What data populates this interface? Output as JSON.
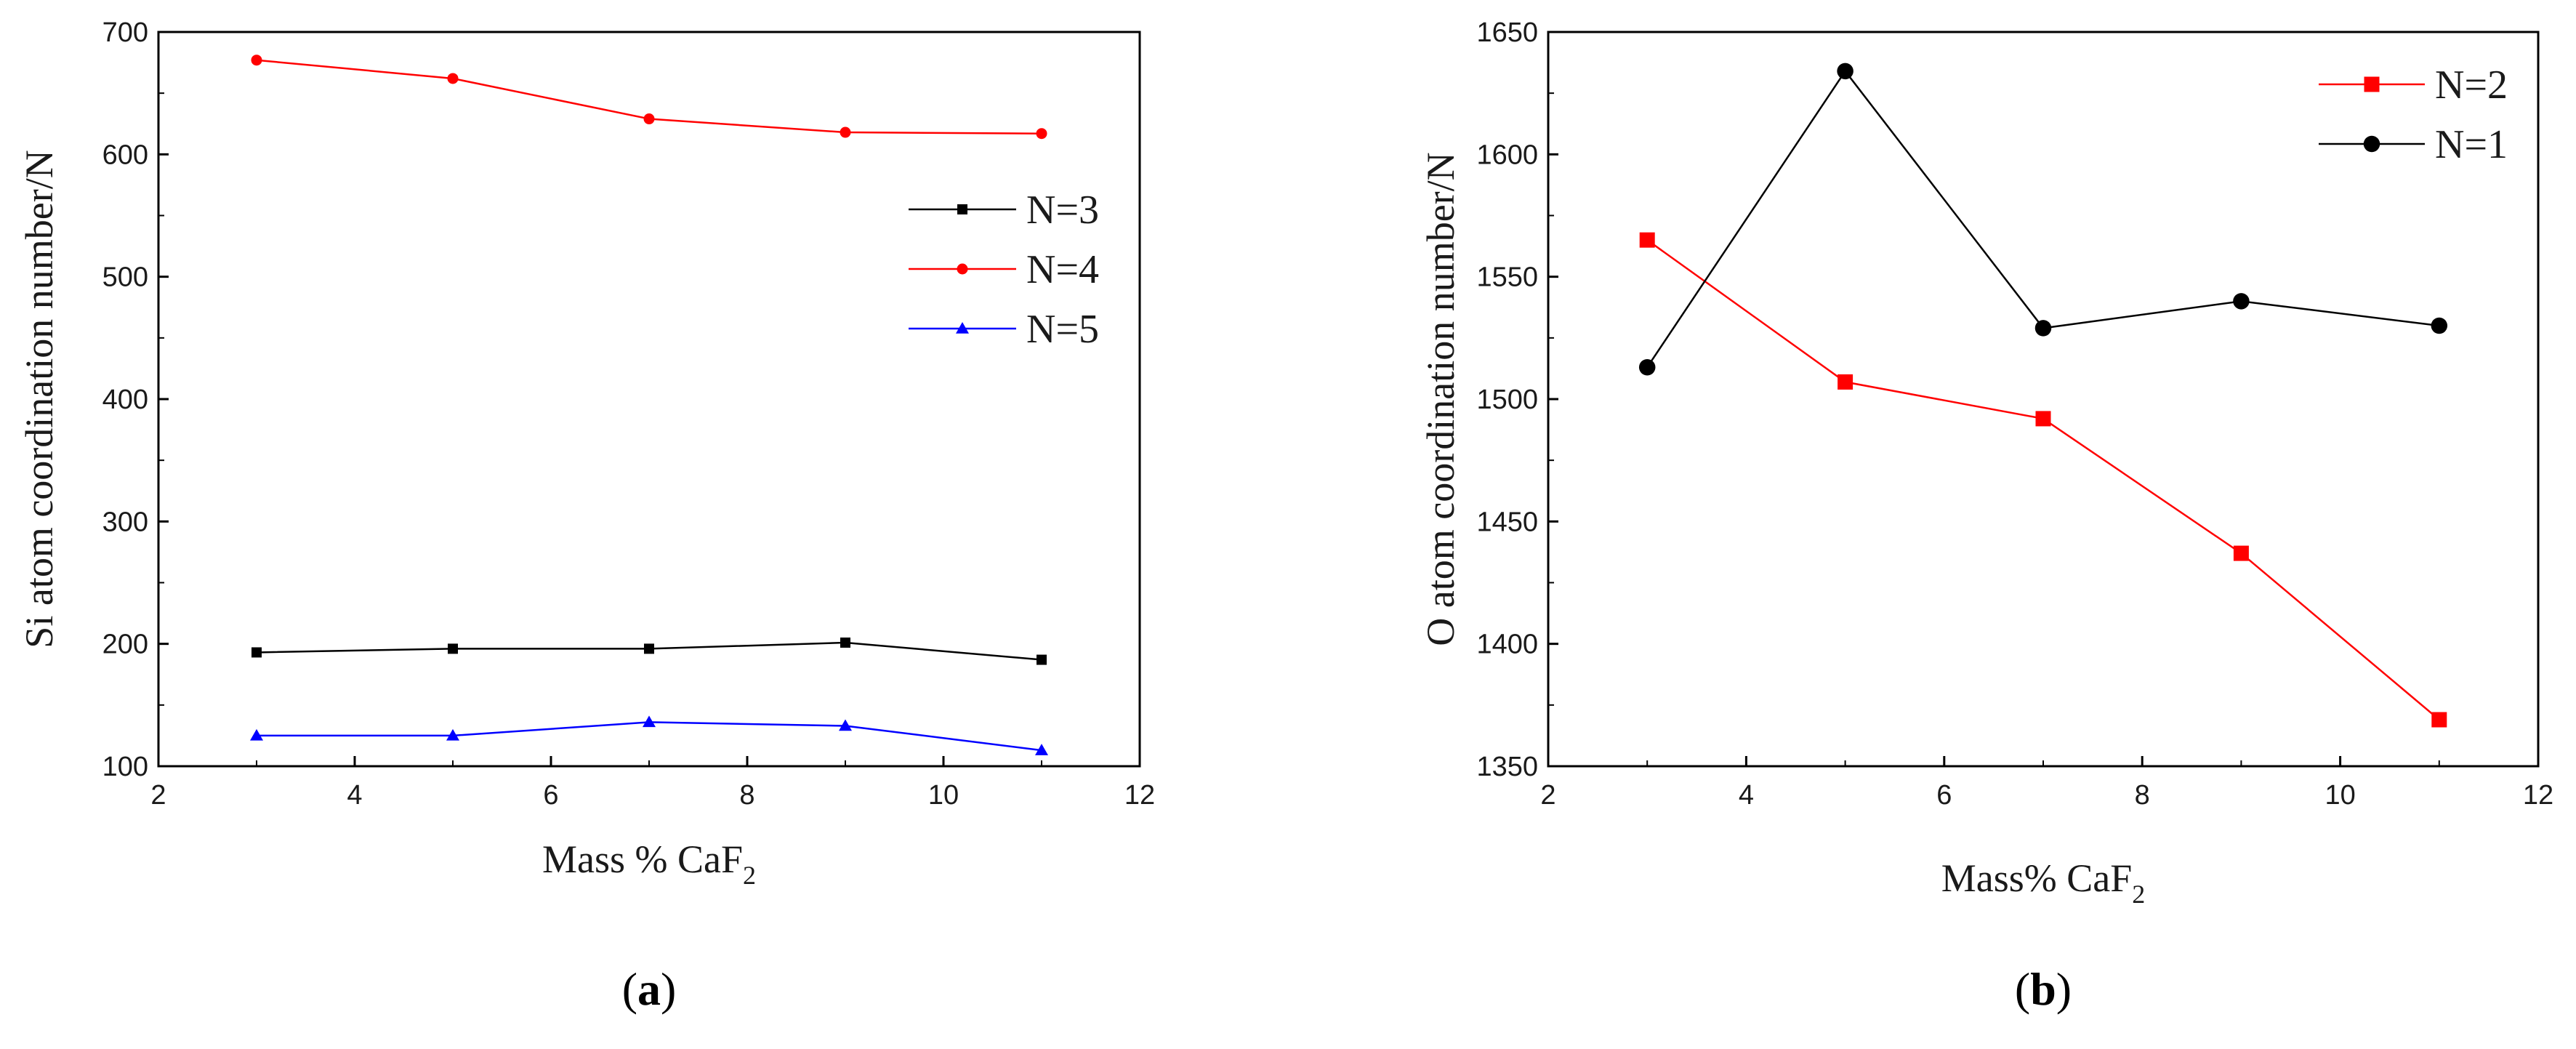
{
  "chart_data": [
    {
      "type": "line",
      "panel_label_open": "(",
      "panel_label_letter": "a",
      "panel_label_close": ")",
      "xlabel": "Mass % CaF",
      "xlabel_subscript": "2",
      "ylabel": "Si  atom coordination number/N",
      "xlim": [
        2,
        12
      ],
      "ylim": [
        100,
        700
      ],
      "xticks": [
        2,
        4,
        6,
        8,
        10,
        12
      ],
      "yticks": [
        100,
        200,
        300,
        400,
        500,
        600,
        700
      ],
      "x": [
        3,
        5,
        7,
        9,
        11
      ],
      "legend_position": "upper-right",
      "series": [
        {
          "name": "N=3",
          "color": "#000000",
          "marker": "square",
          "values": [
            193,
            196,
            196,
            201,
            187
          ]
        },
        {
          "name": "N=4",
          "color": "#ff0000",
          "marker": "circle",
          "values": [
            677,
            662,
            629,
            618,
            617
          ]
        },
        {
          "name": "N=5",
          "color": "#0000ff",
          "marker": "triangle",
          "values": [
            125,
            125,
            136,
            133,
            113
          ]
        }
      ]
    },
    {
      "type": "line",
      "panel_label_open": "(",
      "panel_label_letter": "b",
      "panel_label_close": ")",
      "xlabel": "Mass% CaF",
      "xlabel_subscript": "2",
      "ylabel": "O atom coordination number/N",
      "xlim": [
        2,
        12
      ],
      "ylim": [
        1350,
        1650
      ],
      "xticks": [
        2,
        4,
        6,
        8,
        10,
        12
      ],
      "yticks": [
        1350,
        1400,
        1450,
        1500,
        1550,
        1600,
        1650
      ],
      "x": [
        3,
        5,
        7,
        9,
        11
      ],
      "legend_position": "upper-right",
      "series": [
        {
          "name": "N=2",
          "color": "#ff0000",
          "marker": "square",
          "values": [
            1565,
            1507,
            1492,
            1437,
            1369
          ]
        },
        {
          "name": "N=1",
          "color": "#000000",
          "marker": "circle",
          "values": [
            1513,
            1634,
            1529,
            1540,
            1530
          ]
        }
      ]
    }
  ]
}
